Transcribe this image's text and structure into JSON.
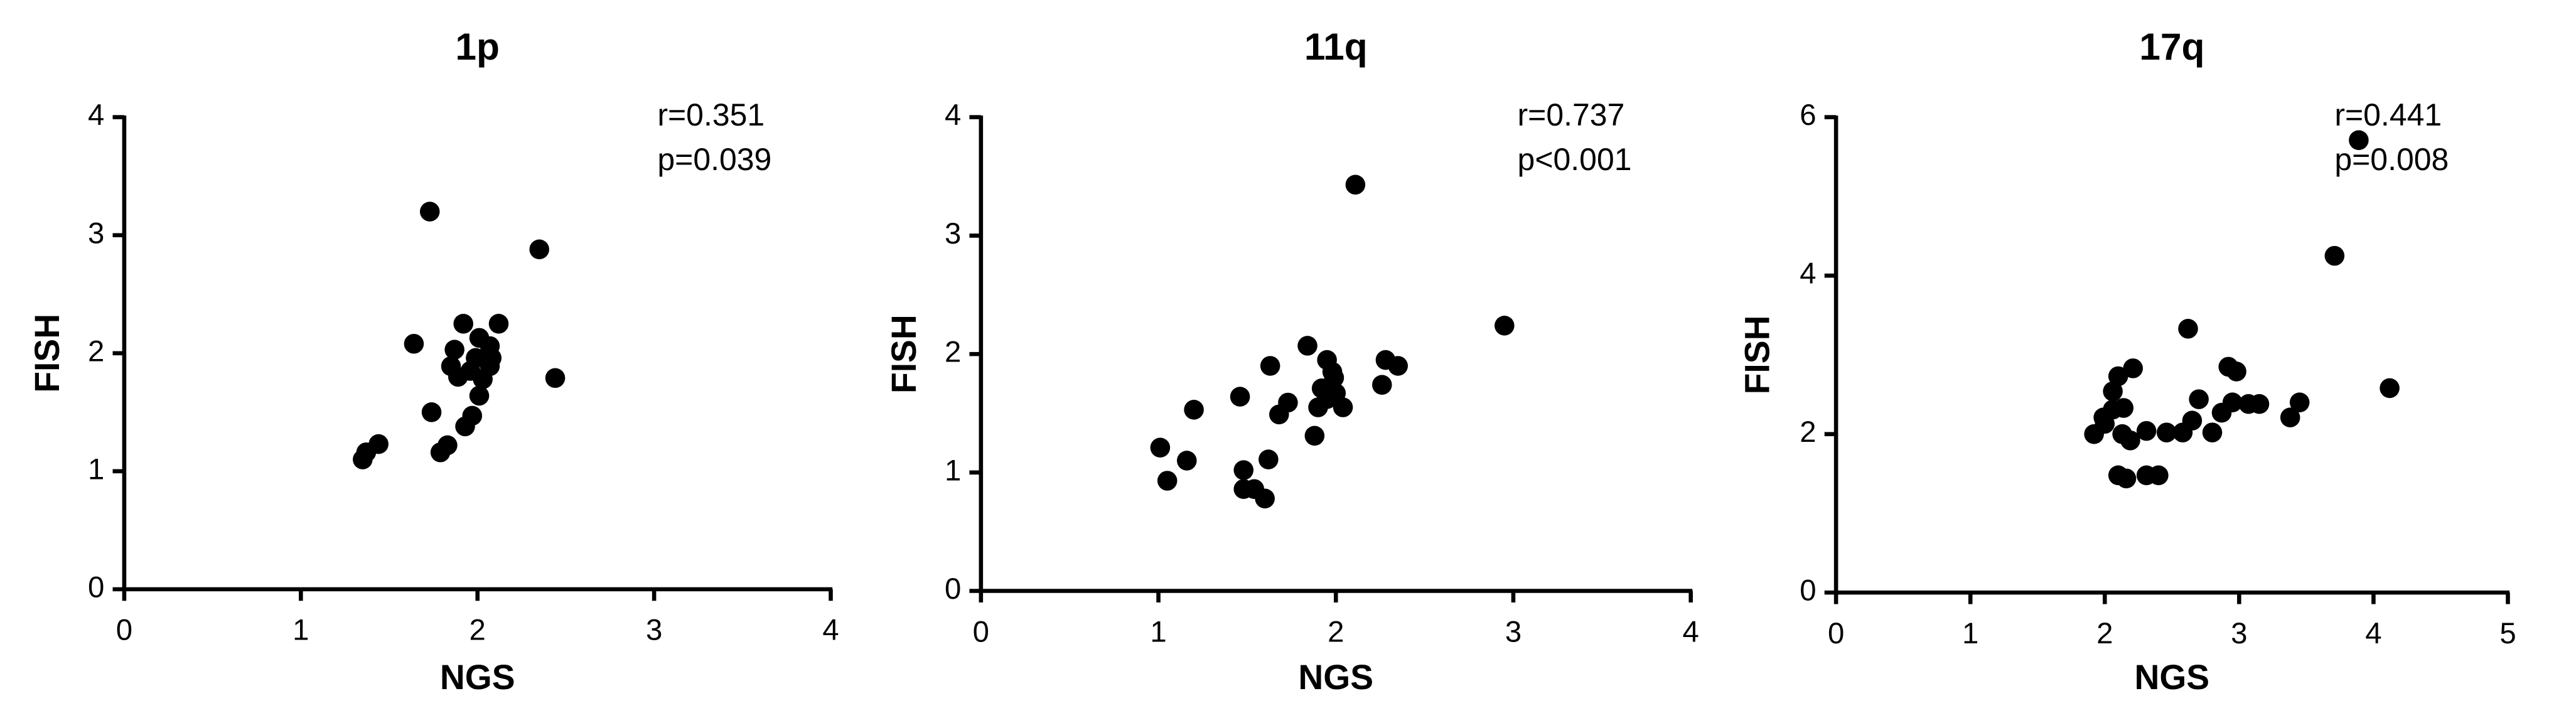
{
  "chart_data": [
    {
      "type": "scatter",
      "title": "1p",
      "x_label": "NGS",
      "y_label": "FISH",
      "annotations": [
        "r=0.351",
        "p=0.039"
      ],
      "color": "#000000",
      "x": [
        1.73,
        2.35,
        1.64,
        1.92,
        2.12,
        2.01,
        2.07,
        1.87,
        1.99,
        2.08,
        1.85,
        1.96,
        2.07,
        1.89,
        2.03,
        2.01,
        2.44,
        1.74,
        1.97,
        1.93,
        1.83,
        1.79,
        1.44,
        1.37,
        1.35
      ],
      "values": [
        3.2,
        2.88,
        2.08,
        2.25,
        2.25,
        2.13,
        2.06,
        2.03,
        1.96,
        1.96,
        1.89,
        1.85,
        1.89,
        1.8,
        1.78,
        1.64,
        1.79,
        1.5,
        1.47,
        1.38,
        1.22,
        1.16,
        1.23,
        1.16,
        1.1
      ],
      "xlim": [
        0,
        4
      ],
      "ylim": [
        0,
        4
      ],
      "xticks": [
        0,
        1,
        2,
        3,
        4
      ],
      "yticks": [
        0,
        1,
        2,
        3,
        4
      ]
    },
    {
      "type": "scatter",
      "title": "11q",
      "x_label": "NGS",
      "y_label": "FISH",
      "annotations": [
        "r=0.737",
        "p<0.001"
      ],
      "color": "#000000",
      "x": [
        2.11,
        2.95,
        1.84,
        1.95,
        1.63,
        1.98,
        1.2,
        1.99,
        2.28,
        2.35,
        2.26,
        1.92,
        2.0,
        2.04,
        1.9,
        1.95,
        1.46,
        1.73,
        1.68,
        1.88,
        1.01,
        1.16,
        1.62,
        1.05,
        1.48,
        1.48,
        1.54,
        1.6
      ],
      "values": [
        3.43,
        2.24,
        2.07,
        1.95,
        1.9,
        1.85,
        1.53,
        1.8,
        1.95,
        1.9,
        1.74,
        1.71,
        1.67,
        1.55,
        1.55,
        1.62,
        1.64,
        1.59,
        1.49,
        1.31,
        1.21,
        1.1,
        1.11,
        0.93,
        1.02,
        0.86,
        0.86,
        0.78
      ],
      "xlim": [
        0,
        4
      ],
      "ylim": [
        0,
        4
      ],
      "xticks": [
        0,
        1,
        2,
        3,
        4
      ],
      "yticks": [
        0,
        1,
        2,
        3,
        4
      ]
    },
    {
      "type": "scatter",
      "title": "17q",
      "x_label": "NGS",
      "y_label": "FISH",
      "annotations": [
        "r=0.441",
        "p=0.008"
      ],
      "color": "#000000",
      "x": [
        3.89,
        3.71,
        4.12,
        2.62,
        2.92,
        2.98,
        1.92,
        2.0,
        2.06,
        2.14,
        2.1,
        2.21,
        2.06,
        1.99,
        2.19,
        2.13,
        2.1,
        2.16,
        2.46,
        2.58,
        2.65,
        2.7,
        2.8,
        2.87,
        2.95,
        3.07,
        3.15,
        3.38,
        3.45,
        2.31,
        2.4,
        2.31
      ],
      "values": [
        5.71,
        4.25,
        2.58,
        3.33,
        2.85,
        2.79,
        2.0,
        2.13,
        2.31,
        2.33,
        2.73,
        2.83,
        2.54,
        2.21,
        1.92,
        2.0,
        1.48,
        1.44,
        2.02,
        2.02,
        2.17,
        2.44,
        2.02,
        2.27,
        2.4,
        2.38,
        2.38,
        2.21,
        2.4,
        1.48,
        1.48,
        2.04
      ],
      "xlim": [
        0,
        5
      ],
      "ylim": [
        0,
        6
      ],
      "xticks": [
        0,
        1,
        2,
        3,
        4,
        5
      ],
      "yticks": [
        0,
        2,
        4,
        6
      ]
    }
  ]
}
